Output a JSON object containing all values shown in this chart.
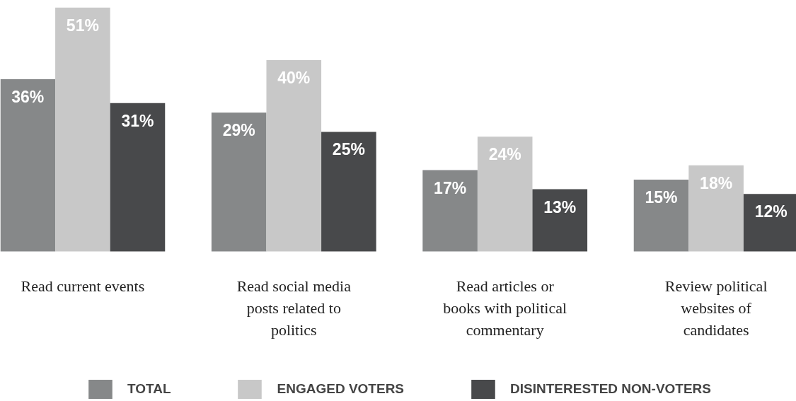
{
  "chart_data": {
    "type": "bar",
    "categories": [
      "Read current events",
      "Read social media posts related to politics",
      "Read articles or books with political commentary",
      "Review political websites of candidates"
    ],
    "series": [
      {
        "name": "TOTAL",
        "color": "#868889",
        "values": [
          36,
          29,
          17,
          15
        ],
        "value_labels": [
          "36%",
          "29%",
          "17%",
          "15%"
        ]
      },
      {
        "name": "ENGAGED VOTERS",
        "color": "#c8c8c8",
        "values": [
          51,
          40,
          24,
          18
        ],
        "value_labels": [
          "51%",
          "40%",
          "24%",
          "18%"
        ]
      },
      {
        "name": "DISINTERESTED NON-VOTERS",
        "color": "#48494b",
        "values": [
          31,
          25,
          13,
          12
        ],
        "value_labels": [
          "31%",
          "25%",
          "13%",
          "12%"
        ]
      }
    ],
    "legend": "bottom"
  }
}
